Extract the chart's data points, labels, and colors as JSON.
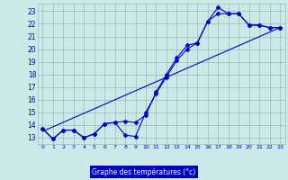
{
  "xlabel": "Graphe des températures (°c)",
  "background_color": "#cce8e8",
  "plot_bg_color": "#cce8e8",
  "line_color": "#0000cc",
  "grid_color": "#99bbbb",
  "xlabel_bg": "#0000bb",
  "xlabel_fg": "#ffffff",
  "xlim": [
    -0.5,
    23.5
  ],
  "ylim": [
    12.5,
    23.6
  ],
  "xticks": [
    0,
    1,
    2,
    3,
    4,
    5,
    6,
    7,
    8,
    9,
    10,
    11,
    12,
    13,
    14,
    15,
    16,
    17,
    18,
    19,
    20,
    21,
    22,
    23
  ],
  "yticks": [
    13,
    14,
    15,
    16,
    17,
    18,
    19,
    20,
    21,
    22,
    23
  ],
  "line1_x": [
    0,
    1,
    2,
    3,
    4,
    5,
    6,
    7,
    8,
    9,
    10,
    11,
    12,
    13,
    14,
    15,
    16,
    17,
    18,
    19,
    20,
    21,
    22,
    23
  ],
  "line1_y": [
    13.7,
    12.9,
    13.6,
    13.6,
    13.0,
    13.3,
    14.1,
    14.2,
    13.2,
    13.1,
    15.0,
    16.5,
    17.8,
    19.1,
    20.0,
    20.5,
    22.2,
    23.3,
    22.8,
    22.8,
    21.9,
    21.9,
    21.7,
    21.7
  ],
  "line2_x": [
    0,
    1,
    2,
    3,
    4,
    5,
    6,
    7,
    8,
    9,
    10,
    11,
    12,
    13,
    14,
    15,
    16,
    17,
    18,
    19,
    20,
    21,
    22,
    23
  ],
  "line2_y": [
    13.7,
    12.9,
    13.6,
    13.6,
    13.0,
    13.3,
    14.1,
    14.2,
    14.3,
    14.2,
    14.8,
    16.6,
    18.0,
    19.3,
    20.3,
    20.5,
    22.2,
    22.8,
    22.8,
    22.8,
    21.9,
    21.9,
    21.7,
    21.7
  ],
  "line3_x": [
    0,
    23
  ],
  "line3_y": [
    13.5,
    21.7
  ],
  "markersize": 2.0
}
